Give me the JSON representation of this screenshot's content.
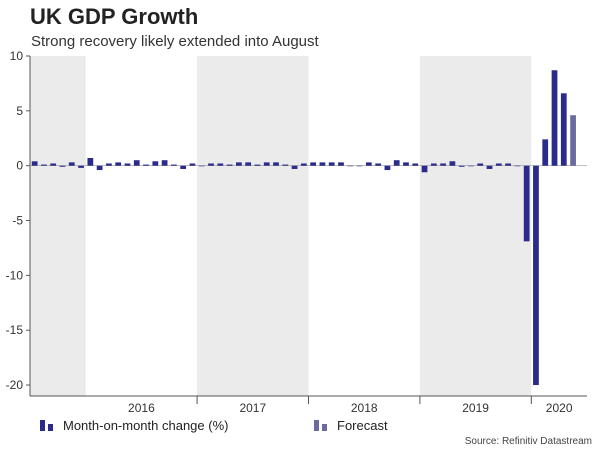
{
  "title": "UK GDP Growth",
  "subtitle": "Strong recovery likely extended into August",
  "source": "Source: Refinitiv Datastream",
  "legend": {
    "actual": "Month-on-month change (%)",
    "forecast": "Forecast"
  },
  "colors": {
    "actual": "#2b2b8c",
    "forecast": "#6b6b9e",
    "band": "#ebebeb",
    "axis": "#555555"
  },
  "chart_data": {
    "type": "bar",
    "title": "UK GDP Growth",
    "ylabel": "Month-on-month change (%)",
    "ylim": [
      -21,
      10
    ],
    "yticks": [
      10,
      5,
      0,
      -5,
      -10,
      -15,
      -20
    ],
    "x_start": "2015-07",
    "year_labels": [
      {
        "label": "2016",
        "band": false
      },
      {
        "label": "2017",
        "band": true
      },
      {
        "label": "2018",
        "band": false
      },
      {
        "label": "2019",
        "band": true
      },
      {
        "label": "2020",
        "band": false
      }
    ],
    "series": [
      {
        "name": "Month-on-month change (%)",
        "values": [
          0.4,
          0.1,
          0.2,
          -0.1,
          0.3,
          -0.2,
          0.7,
          -0.4,
          0.2,
          0.3,
          0.2,
          0.5,
          0.1,
          0.4,
          0.5,
          0.1,
          -0.3,
          0.2,
          0.0,
          0.2,
          0.2,
          0.1,
          0.3,
          0.3,
          0.1,
          0.3,
          0.3,
          0.1,
          -0.3,
          0.2,
          0.3,
          0.3,
          0.3,
          0.3,
          0.0,
          0.0,
          0.3,
          0.2,
          -0.4,
          0.5,
          0.3,
          0.2,
          -0.6,
          0.2,
          0.2,
          0.4,
          -0.1,
          0.0,
          0.2,
          -0.3,
          0.2,
          0.2,
          0.0,
          -6.9,
          -20.0,
          2.4,
          8.7,
          6.6
        ]
      },
      {
        "name": "Forecast",
        "values": [
          4.6
        ]
      }
    ]
  }
}
